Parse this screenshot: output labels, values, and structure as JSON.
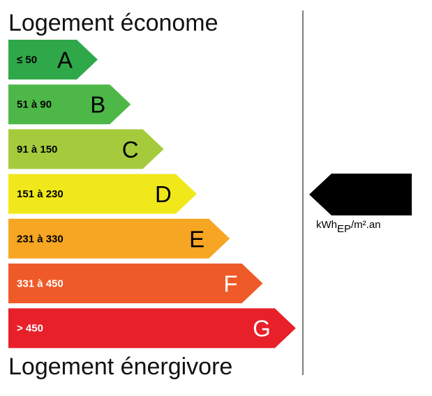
{
  "header": {
    "top_title": "Logement économe",
    "bottom_title": "Logement énergivore"
  },
  "classes": [
    {
      "range": "≤ 50",
      "letter": "A",
      "color": "#2fa84a",
      "text_color": "#000"
    },
    {
      "range": "51 à 90",
      "letter": "B",
      "color": "#4db848",
      "text_color": "#000"
    },
    {
      "range": "91 à 150",
      "letter": "C",
      "color": "#a5cb3c",
      "text_color": "#000"
    },
    {
      "range": "151 à 230",
      "letter": "D",
      "color": "#f1e81b",
      "text_color": "#000"
    },
    {
      "range": "231 à 330",
      "letter": "E",
      "color": "#f6a623",
      "text_color": "#000"
    },
    {
      "range": "331 à 450",
      "letter": "F",
      "color": "#ef5a29",
      "text_color": "#fff"
    },
    {
      "range": "> 450",
      "letter": "G",
      "color": "#e8202a",
      "text_color": "#fff"
    }
  ],
  "indicator": {
    "unit_main": "kWh",
    "unit_sub": "EP",
    "unit_rest": "/m².an"
  }
}
